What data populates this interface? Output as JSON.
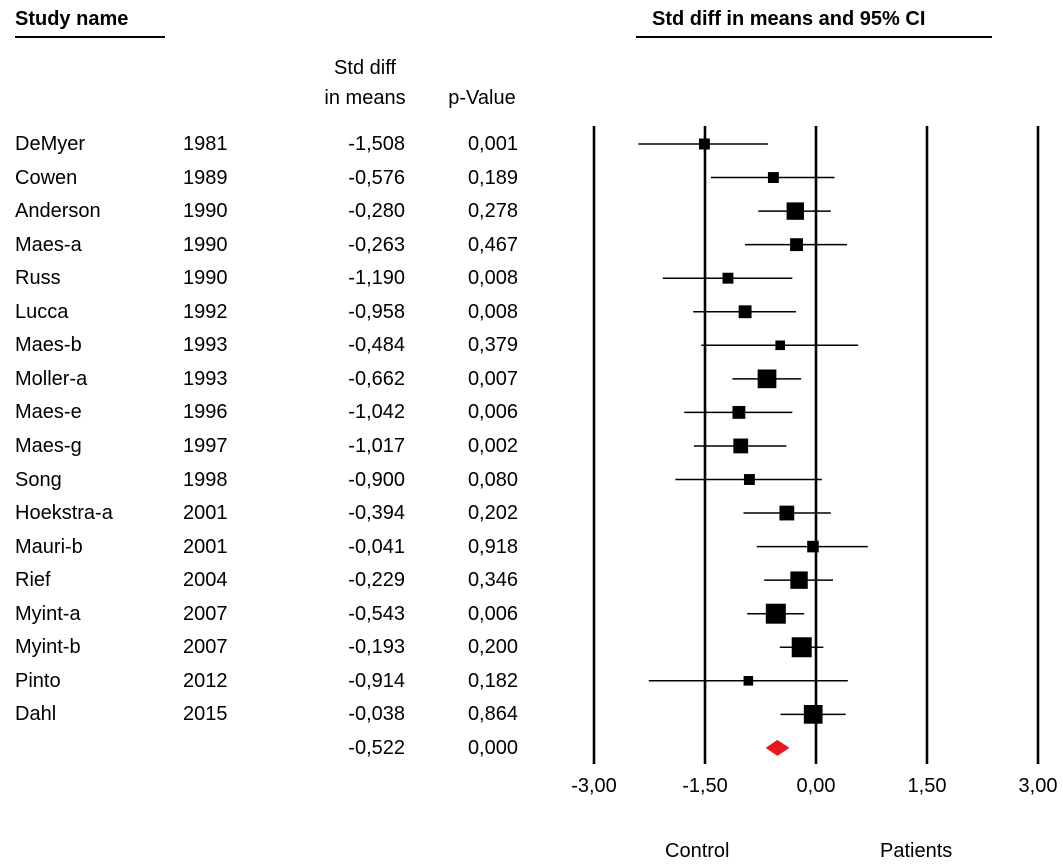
{
  "headers": {
    "study_name": "Study name",
    "plot_title": "Std diff in means and 95% CI",
    "smd_line1": "Std diff",
    "smd_line2": "in means",
    "pvalue": "p-Value"
  },
  "labels": {
    "left_side": "Control",
    "right_side": "Patients"
  },
  "colors": {
    "marker": "#000000",
    "summary": "#e8191b"
  },
  "chart_data": {
    "type": "forest",
    "xlim": [
      -3.0,
      3.0
    ],
    "xticks": [
      "-3,00",
      "-1,50",
      "0,00",
      "1,50",
      "3,00"
    ],
    "xtick_values": [
      -3.0,
      -1.5,
      0.0,
      1.5,
      3.0
    ],
    "studies": [
      {
        "name": "DeMyer",
        "year": "1981",
        "smd": "-1,508",
        "p": "0,001",
        "value": -1.508,
        "lower": -2.4,
        "upper": -0.65,
        "weight": 0.3
      },
      {
        "name": "Cowen",
        "year": "1989",
        "smd": "-0,576",
        "p": "0,189",
        "value": -0.576,
        "lower": -1.42,
        "upper": 0.25,
        "weight": 0.3
      },
      {
        "name": "Anderson",
        "year": "1990",
        "smd": "-0,280",
        "p": "0,278",
        "value": -0.28,
        "lower": -0.78,
        "upper": 0.2,
        "weight": 0.8
      },
      {
        "name": "Maes-a",
        "year": "1990",
        "smd": "-0,263",
        "p": "0,467",
        "value": -0.263,
        "lower": -0.96,
        "upper": 0.42,
        "weight": 0.45
      },
      {
        "name": "Russ",
        "year": "1990",
        "smd": "-1,190",
        "p": "0,008",
        "value": -1.19,
        "lower": -2.07,
        "upper": -0.32,
        "weight": 0.3
      },
      {
        "name": "Lucca",
        "year": "1992",
        "smd": "-0,958",
        "p": "0,008",
        "value": -0.958,
        "lower": -1.66,
        "upper": -0.27,
        "weight": 0.45
      },
      {
        "name": "Maes-b",
        "year": "1993",
        "smd": "-0,484",
        "p": "0,379",
        "value": -0.484,
        "lower": -1.55,
        "upper": 0.57,
        "weight": 0.2
      },
      {
        "name": "Moller-a",
        "year": "1993",
        "smd": "-0,662",
        "p": "0,007",
        "value": -0.662,
        "lower": -1.13,
        "upper": -0.2,
        "weight": 0.9
      },
      {
        "name": "Maes-e",
        "year": "1996",
        "smd": "-1,042",
        "p": "0,006",
        "value": -1.042,
        "lower": -1.78,
        "upper": -0.32,
        "weight": 0.45
      },
      {
        "name": "Maes-g",
        "year": "1997",
        "smd": "-1,017",
        "p": "0,002",
        "value": -1.017,
        "lower": -1.65,
        "upper": -0.4,
        "weight": 0.6
      },
      {
        "name": "Song",
        "year": "1998",
        "smd": "-0,900",
        "p": "0,080",
        "value": -0.9,
        "lower": -1.9,
        "upper": 0.08,
        "weight": 0.3
      },
      {
        "name": "Hoekstra-a",
        "year": "2001",
        "smd": "-0,394",
        "p": "0,202",
        "value": -0.394,
        "lower": -0.98,
        "upper": 0.2,
        "weight": 0.6
      },
      {
        "name": "Mauri-b",
        "year": "2001",
        "smd": "-0,041",
        "p": "0,918",
        "value": -0.041,
        "lower": -0.8,
        "upper": 0.7,
        "weight": 0.35
      },
      {
        "name": "Rief",
        "year": "2004",
        "smd": "-0,229",
        "p": "0,346",
        "value": -0.229,
        "lower": -0.7,
        "upper": 0.23,
        "weight": 0.8
      },
      {
        "name": "Myint-a",
        "year": "2007",
        "smd": "-0,543",
        "p": "0,006",
        "value": -0.543,
        "lower": -0.93,
        "upper": -0.16,
        "weight": 1.0
      },
      {
        "name": "Myint-b",
        "year": "2007",
        "smd": "-0,193",
        "p": "0,200",
        "value": -0.193,
        "lower": -0.49,
        "upper": 0.1,
        "weight": 1.0
      },
      {
        "name": "Pinto",
        "year": "2012",
        "smd": "-0,914",
        "p": "0,182",
        "value": -0.914,
        "lower": -2.26,
        "upper": 0.43,
        "weight": 0.2
      },
      {
        "name": "Dahl",
        "year": "2015",
        "smd": "-0,038",
        "p": "0,864",
        "value": -0.038,
        "lower": -0.48,
        "upper": 0.4,
        "weight": 0.9
      }
    ],
    "summary": {
      "smd": "-0,522",
      "p": "0,000",
      "value": -0.522,
      "lower": -0.68,
      "upper": -0.36
    }
  }
}
